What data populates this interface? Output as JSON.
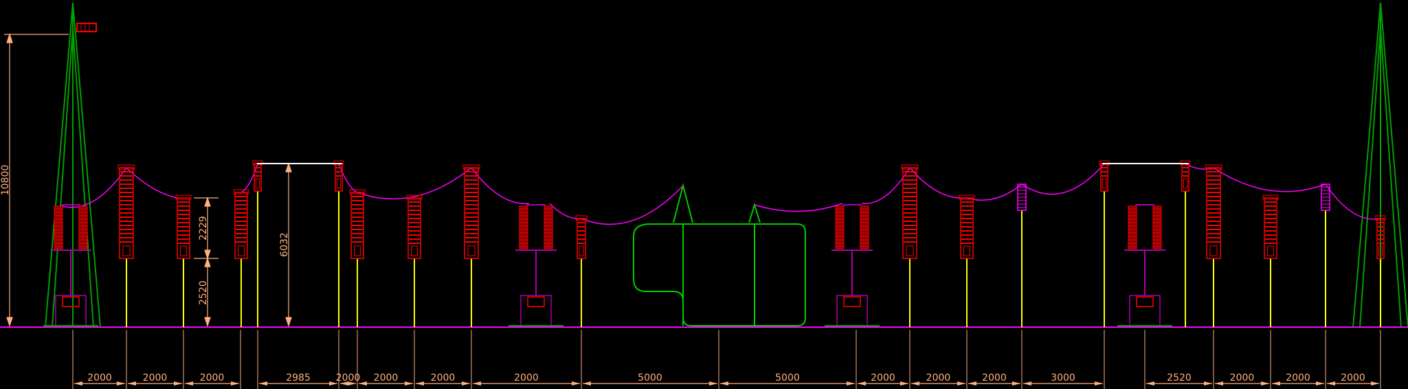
{
  "drawing": {
    "colors": {
      "background": "#000000",
      "ground": "#ff00ff",
      "insulator": "#ff0000",
      "insulator_body": "#8b0000",
      "conductor": "#ff00ff",
      "support": "#ffff00",
      "tower": "#00a000",
      "transformer": "#00cc00",
      "dimension": "#ffb080",
      "base": "#7a007a"
    },
    "vertical_dimensions": {
      "left_total": "10800",
      "upper": "2229",
      "lower": "2520",
      "gantry": "6032"
    },
    "horizontal_dimensions": [
      "2000",
      "2000",
      "2000",
      "2985",
      "2000",
      "2000",
      "2000",
      "2000",
      "5000",
      "5000",
      "2000",
      "2000",
      "2000",
      "3000",
      "2520",
      "2000",
      "2000",
      "2000"
    ]
  }
}
